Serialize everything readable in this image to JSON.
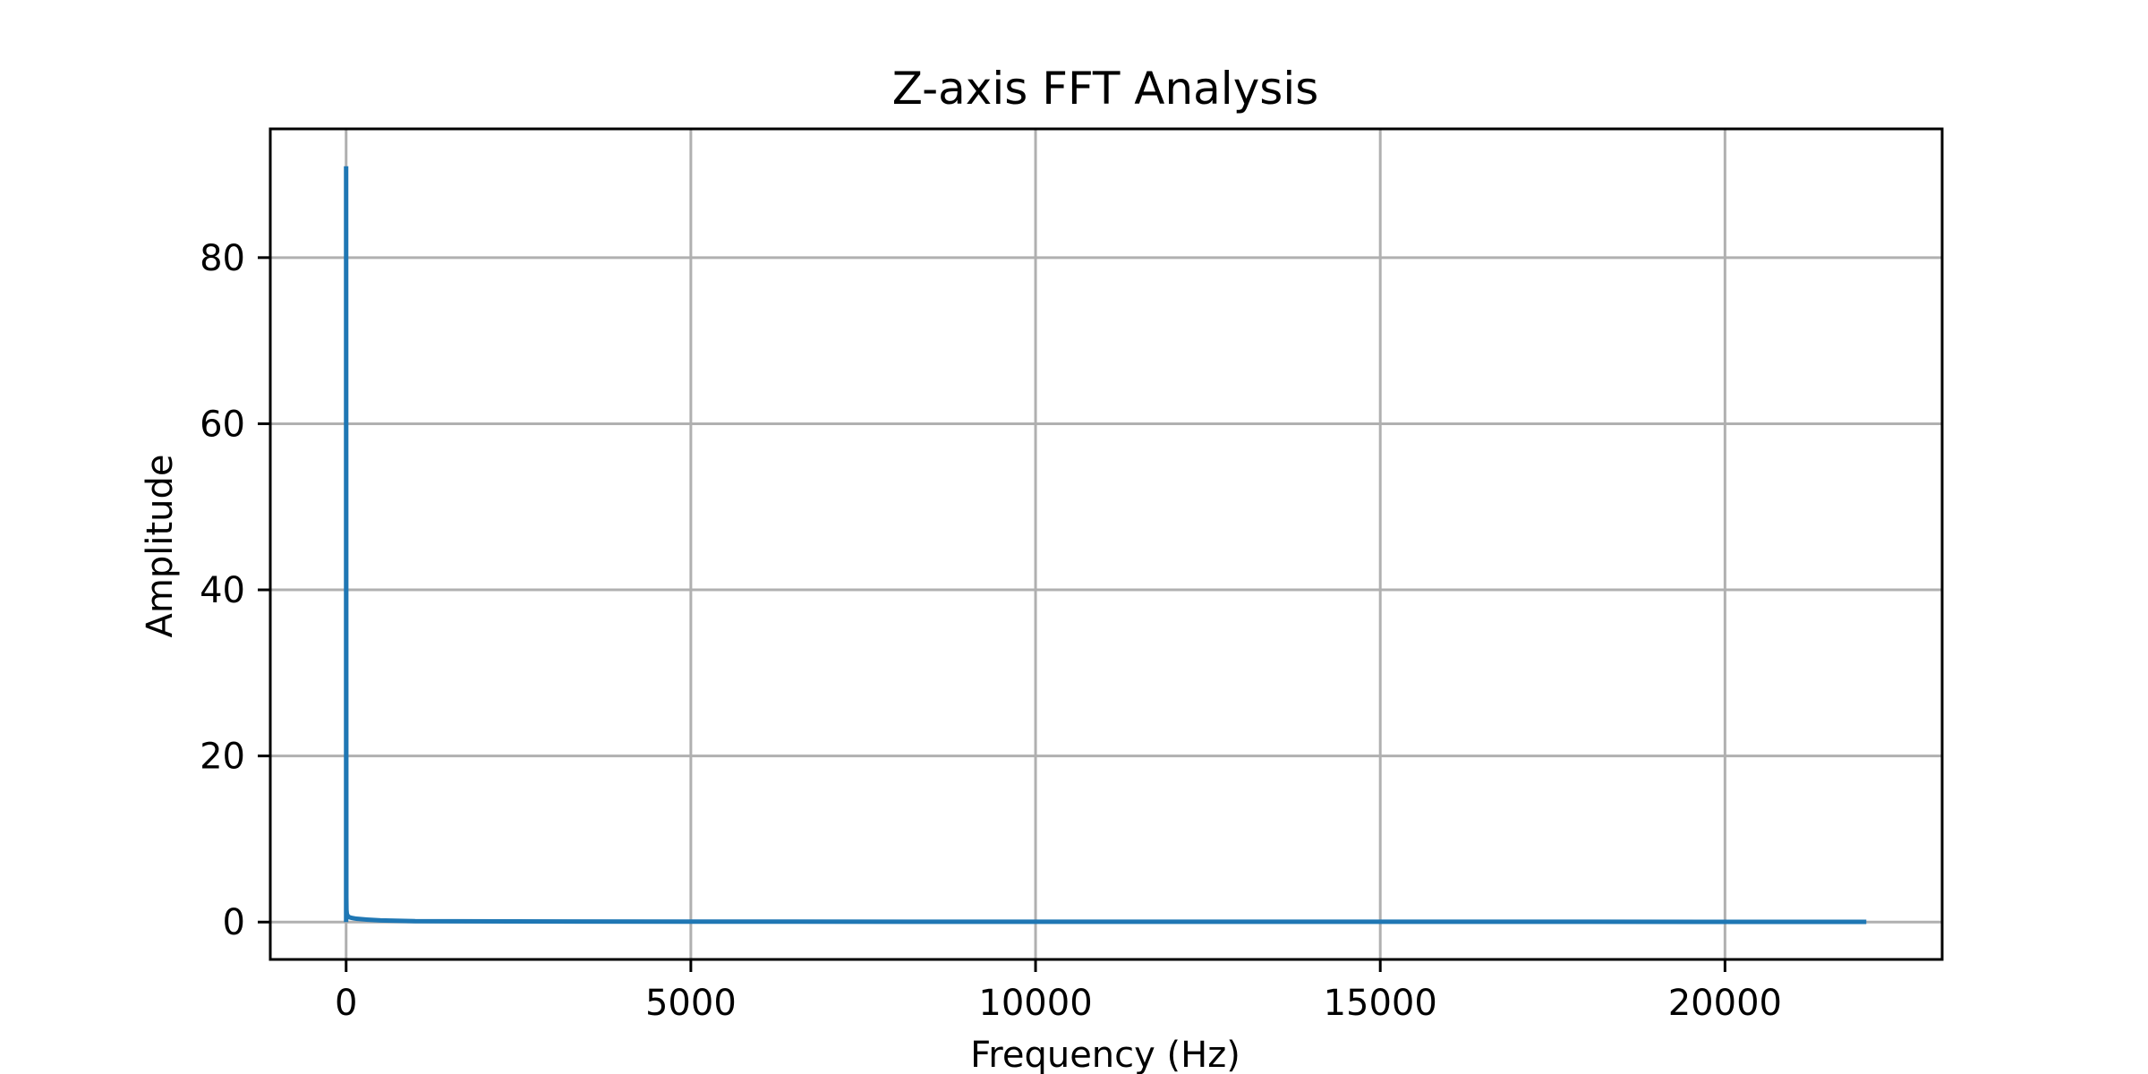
{
  "chart_data": {
    "type": "line",
    "title": "Z-axis FFT Analysis",
    "xlabel": "Frequency (Hz)",
    "ylabel": "Amplitude",
    "xlim": [
      -1100,
      23150
    ],
    "ylim": [
      -4.5,
      95.5
    ],
    "xticks": [
      0,
      5000,
      10000,
      15000,
      20000
    ],
    "yticks": [
      0,
      20,
      40,
      60,
      80
    ],
    "xtick_labels": [
      "0",
      "5000",
      "10000",
      "15000",
      "20000"
    ],
    "ytick_labels": [
      "0",
      "20",
      "40",
      "60",
      "80"
    ],
    "grid": true,
    "series_color": "#1f77b4",
    "series": [
      {
        "x": [
          0,
          0,
          3,
          5,
          10,
          20,
          40,
          80,
          150,
          300,
          500,
          1000,
          5000,
          10000,
          15000,
          20000,
          22050
        ],
        "y": [
          0,
          91,
          3,
          1.5,
          1.0,
          0.8,
          0.6,
          0.5,
          0.4,
          0.3,
          0.2,
          0.1,
          0.05,
          0.04,
          0.04,
          0.03,
          0.03
        ]
      }
    ]
  }
}
